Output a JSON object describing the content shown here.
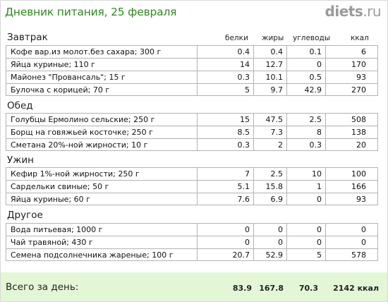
{
  "header": {
    "title": "Дневник питания, 25 февраля",
    "logo_main": "diets",
    "logo_tld": ".ru"
  },
  "columns": {
    "protein": "белки",
    "fat": "жиры",
    "carbs": "углеводы",
    "kcal": "ккал"
  },
  "sections": [
    {
      "title": "Завтрак",
      "items": [
        {
          "name": "Кофе вар.из молот.без сахара; 300 г",
          "protein": "0.4",
          "fat": "0.4",
          "carbs": "0.1",
          "kcal": "6"
        },
        {
          "name": "Яйца куриные; 110 г",
          "protein": "14",
          "fat": "12.7",
          "carbs": "0",
          "kcal": "170"
        },
        {
          "name": "Майонез \"Провансаль\"; 15 г",
          "protein": "0.3",
          "fat": "10.1",
          "carbs": "0.5",
          "kcal": "93"
        },
        {
          "name": "Булочка с корицей; 70 г",
          "protein": "5",
          "fat": "9.7",
          "carbs": "42.9",
          "kcal": "270"
        }
      ]
    },
    {
      "title": "Обед",
      "items": [
        {
          "name": "Голубцы Ермолино сельские; 250 г",
          "protein": "15",
          "fat": "47.5",
          "carbs": "2.5",
          "kcal": "508"
        },
        {
          "name": "Борщ на говяжьей косточке; 250 г",
          "protein": "8.5",
          "fat": "7.3",
          "carbs": "8",
          "kcal": "138"
        },
        {
          "name": "Сметана 20%-ной жирности; 10 г",
          "protein": "0.3",
          "fat": "2",
          "carbs": "0.3",
          "kcal": "20"
        }
      ]
    },
    {
      "title": "Ужин",
      "items": [
        {
          "name": "Кефир 1%-ной жирности; 250 г",
          "protein": "7",
          "fat": "2.5",
          "carbs": "10",
          "kcal": "100"
        },
        {
          "name": "Сардельки свиные; 50 г",
          "protein": "5.1",
          "fat": "15.8",
          "carbs": "1",
          "kcal": "166"
        },
        {
          "name": "Яйца куриные; 60 г",
          "protein": "7.6",
          "fat": "6.9",
          "carbs": "0",
          "kcal": "93"
        }
      ]
    },
    {
      "title": "Другое",
      "items": [
        {
          "name": "Вода питьевая; 1000 г",
          "protein": "0",
          "fat": "0",
          "carbs": "0",
          "kcal": "0"
        },
        {
          "name": "Чай травяной; 430 г",
          "protein": "0",
          "fat": "0",
          "carbs": "0",
          "kcal": "0"
        },
        {
          "name": "Семена подсолнечника жареные; 100 г",
          "protein": "20.7",
          "fat": "52.9",
          "carbs": "5",
          "kcal": "578"
        }
      ]
    }
  ],
  "totals": {
    "label": "Всего за день:",
    "protein": "83.9",
    "fat": "167.8",
    "carbs": "70.3",
    "kcal": "2142 ккал"
  },
  "colors": {
    "title": "#2e8b1e",
    "logo": "#9a9a9a",
    "footer_bg": "#e3f7d6",
    "grid": "#b3b3b3"
  }
}
